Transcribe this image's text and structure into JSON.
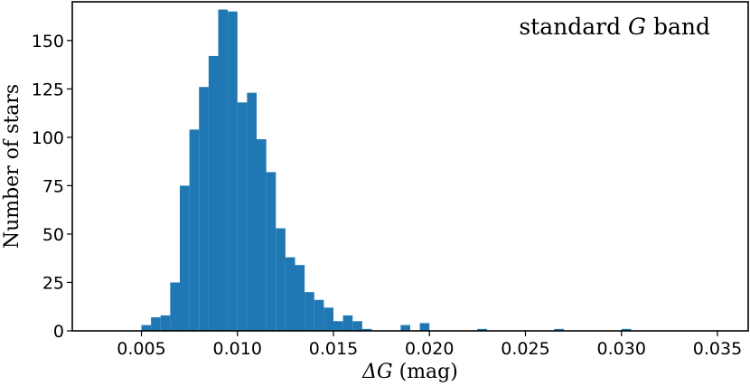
{
  "chart_data": {
    "type": "bar",
    "subtype": "histogram",
    "bar_color": "#1f77b4",
    "annotation": {
      "prefix": "standard ",
      "symbol": "G",
      "suffix": " band",
      "placement": "top-right"
    },
    "xlabel": {
      "symbol": "ΔG",
      "unit": "(mag)"
    },
    "ylabel": "Number of stars",
    "xlim": [
      0.0014,
      0.0366
    ],
    "ylim": [
      0,
      170
    ],
    "xticks": [
      0.005,
      0.01,
      0.015,
      0.02,
      0.025,
      0.03,
      0.035
    ],
    "xtick_labels": [
      "0.005",
      "0.010",
      "0.015",
      "0.020",
      "0.025",
      "0.030",
      "0.035"
    ],
    "yticks": [
      0,
      25,
      50,
      75,
      100,
      125,
      150
    ],
    "ytick_labels": [
      "0",
      "25",
      "50",
      "75",
      "100",
      "125",
      "150"
    ],
    "grid": false,
    "bin_width": 0.0005,
    "bins": [
      {
        "x0": 0.005,
        "count": 3
      },
      {
        "x0": 0.0055,
        "count": 7
      },
      {
        "x0": 0.006,
        "count": 8
      },
      {
        "x0": 0.0065,
        "count": 25
      },
      {
        "x0": 0.007,
        "count": 75
      },
      {
        "x0": 0.0075,
        "count": 104
      },
      {
        "x0": 0.008,
        "count": 126
      },
      {
        "x0": 0.0085,
        "count": 142
      },
      {
        "x0": 0.009,
        "count": 166
      },
      {
        "x0": 0.0095,
        "count": 165
      },
      {
        "x0": 0.01,
        "count": 118
      },
      {
        "x0": 0.0105,
        "count": 123
      },
      {
        "x0": 0.011,
        "count": 99
      },
      {
        "x0": 0.0115,
        "count": 82
      },
      {
        "x0": 0.012,
        "count": 53
      },
      {
        "x0": 0.0125,
        "count": 38
      },
      {
        "x0": 0.013,
        "count": 34
      },
      {
        "x0": 0.0135,
        "count": 20
      },
      {
        "x0": 0.014,
        "count": 16
      },
      {
        "x0": 0.0145,
        "count": 12
      },
      {
        "x0": 0.015,
        "count": 5
      },
      {
        "x0": 0.0155,
        "count": 8
      },
      {
        "x0": 0.016,
        "count": 5
      },
      {
        "x0": 0.0165,
        "count": 1
      },
      {
        "x0": 0.0185,
        "count": 3
      },
      {
        "x0": 0.0195,
        "count": 4
      },
      {
        "x0": 0.0225,
        "count": 1
      },
      {
        "x0": 0.0265,
        "count": 1
      },
      {
        "x0": 0.03,
        "count": 1
      }
    ]
  }
}
